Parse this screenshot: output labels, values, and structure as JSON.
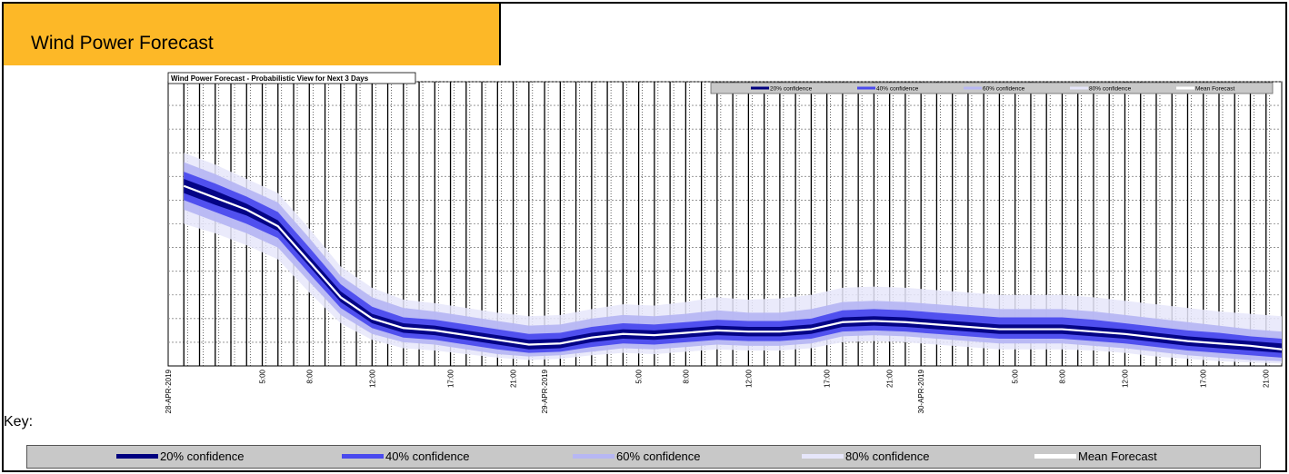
{
  "header": {
    "title": "Wind Power Forecast"
  },
  "key": {
    "label": "Key:",
    "items": [
      {
        "label": "20% confidence",
        "color": "#00007f"
      },
      {
        "label": "40% confidence",
        "color": "#4a4aee"
      },
      {
        "label": "60% confidence",
        "color": "#b7b7f3"
      },
      {
        "label": "80% confidence",
        "color": "#e6e6fa"
      },
      {
        "label": "Mean Forecast",
        "color": "#ffffff"
      }
    ]
  },
  "chart_data": {
    "type": "area",
    "title": "Wind Power Forecast - Probabilistic View for Next 3 Days",
    "xlabel": "",
    "ylabel": "",
    "ylim": [
      0,
      12000
    ],
    "yticks": [
      "0",
      "1,000",
      "2,000",
      "3,000",
      "4,000",
      "5,000",
      "6,000",
      "7,000",
      "8,000",
      "9,000",
      "10,000",
      "11,000",
      "12,000"
    ],
    "grid": true,
    "legend_position": "top-right",
    "legend": [
      "20% confidence",
      "40% confidence",
      "60% confidence",
      "80% confidence",
      "Mean Forecast"
    ],
    "x_hours": [
      0,
      2,
      4,
      6,
      8,
      10,
      12,
      14,
      16,
      18,
      20,
      22,
      24,
      26,
      28,
      30,
      32,
      34,
      36,
      38,
      40,
      42,
      44,
      46,
      48,
      50,
      52,
      54,
      56,
      58,
      60,
      62,
      64,
      66,
      68,
      70
    ],
    "x_tick_labels": [
      {
        "hour": 0,
        "label": "28-APR-2019"
      },
      {
        "hour": 5,
        "label": "5:00"
      },
      {
        "hour": 8,
        "label": "8:00"
      },
      {
        "hour": 12,
        "label": "12:00"
      },
      {
        "hour": 17,
        "label": "17:00"
      },
      {
        "hour": 21,
        "label": "21:00"
      },
      {
        "hour": 24,
        "label": "29-APR-2019"
      },
      {
        "hour": 29,
        "label": "5:00"
      },
      {
        "hour": 32,
        "label": "8:00"
      },
      {
        "hour": 36,
        "label": "12:00"
      },
      {
        "hour": 41,
        "label": "17:00"
      },
      {
        "hour": 45,
        "label": "21:00"
      },
      {
        "hour": 48,
        "label": "30-APR-2019"
      },
      {
        "hour": 53,
        "label": "5:00"
      },
      {
        "hour": 56,
        "label": "8:00"
      },
      {
        "hour": 60,
        "label": "12:00"
      },
      {
        "hour": 65,
        "label": "17:00"
      },
      {
        "hour": 69,
        "label": "21:00"
      }
    ],
    "series": [
      {
        "name": "Mean Forecast",
        "values": [
          7600,
          7100,
          6600,
          5900,
          4400,
          2900,
          2000,
          1600,
          1500,
          1300,
          1100,
          900,
          950,
          1200,
          1350,
          1300,
          1400,
          1500,
          1450,
          1450,
          1550,
          1850,
          1900,
          1850,
          1750,
          1650,
          1550,
          1550,
          1550,
          1450,
          1350,
          1200,
          1050,
          950,
          850,
          700
        ]
      },
      {
        "name": "20% confidence",
        "values": [
          [
            7300,
            7900
          ],
          [
            6800,
            7400
          ],
          [
            6350,
            6850
          ],
          [
            5700,
            6150
          ],
          [
            4200,
            4650
          ],
          [
            2700,
            3150
          ],
          [
            1800,
            2200
          ],
          [
            1400,
            1800
          ],
          [
            1300,
            1700
          ],
          [
            1100,
            1500
          ],
          [
            900,
            1300
          ],
          [
            700,
            1100
          ],
          [
            750,
            1150
          ],
          [
            1000,
            1400
          ],
          [
            1150,
            1550
          ],
          [
            1100,
            1500
          ],
          [
            1200,
            1600
          ],
          [
            1300,
            1700
          ],
          [
            1250,
            1650
          ],
          [
            1250,
            1650
          ],
          [
            1350,
            1750
          ],
          [
            1650,
            2050
          ],
          [
            1700,
            2100
          ],
          [
            1650,
            2050
          ],
          [
            1550,
            1950
          ],
          [
            1450,
            1850
          ],
          [
            1350,
            1750
          ],
          [
            1350,
            1750
          ],
          [
            1350,
            1750
          ],
          [
            1250,
            1650
          ],
          [
            1150,
            1550
          ],
          [
            1000,
            1400
          ],
          [
            850,
            1250
          ],
          [
            750,
            1150
          ],
          [
            650,
            1050
          ],
          [
            550,
            950
          ]
        ]
      },
      {
        "name": "40% confidence",
        "values": [
          [
            7000,
            8200
          ],
          [
            6500,
            7700
          ],
          [
            6000,
            7150
          ],
          [
            5400,
            6500
          ],
          [
            3900,
            5000
          ],
          [
            2450,
            3450
          ],
          [
            1600,
            2500
          ],
          [
            1200,
            2050
          ],
          [
            1100,
            1950
          ],
          [
            900,
            1750
          ],
          [
            700,
            1550
          ],
          [
            550,
            1350
          ],
          [
            600,
            1400
          ],
          [
            800,
            1650
          ],
          [
            950,
            1800
          ],
          [
            900,
            1750
          ],
          [
            1000,
            1850
          ],
          [
            1100,
            1950
          ],
          [
            1050,
            1900
          ],
          [
            1050,
            1900
          ],
          [
            1150,
            2000
          ],
          [
            1450,
            2350
          ],
          [
            1500,
            2400
          ],
          [
            1450,
            2350
          ],
          [
            1350,
            2250
          ],
          [
            1250,
            2150
          ],
          [
            1150,
            2050
          ],
          [
            1150,
            2050
          ],
          [
            1150,
            2050
          ],
          [
            1050,
            1950
          ],
          [
            950,
            1800
          ],
          [
            800,
            1650
          ],
          [
            650,
            1500
          ],
          [
            550,
            1400
          ],
          [
            450,
            1250
          ],
          [
            350,
            1150
          ]
        ]
      },
      {
        "name": "60% confidence",
        "values": [
          [
            6600,
            8600
          ],
          [
            6100,
            8100
          ],
          [
            5600,
            7500
          ],
          [
            5000,
            6900
          ],
          [
            3550,
            5400
          ],
          [
            2150,
            3800
          ],
          [
            1350,
            2900
          ],
          [
            1000,
            2450
          ],
          [
            900,
            2300
          ],
          [
            700,
            2100
          ],
          [
            500,
            1900
          ],
          [
            400,
            1700
          ],
          [
            450,
            1750
          ],
          [
            600,
            2000
          ],
          [
            750,
            2150
          ],
          [
            700,
            2100
          ],
          [
            800,
            2200
          ],
          [
            900,
            2350
          ],
          [
            850,
            2250
          ],
          [
            850,
            2250
          ],
          [
            950,
            2400
          ],
          [
            1250,
            2700
          ],
          [
            1300,
            2750
          ],
          [
            1250,
            2700
          ],
          [
            1150,
            2600
          ],
          [
            1050,
            2500
          ],
          [
            950,
            2400
          ],
          [
            950,
            2400
          ],
          [
            950,
            2400
          ],
          [
            850,
            2300
          ],
          [
            750,
            2150
          ],
          [
            600,
            2000
          ],
          [
            450,
            1850
          ],
          [
            350,
            1700
          ],
          [
            250,
            1550
          ],
          [
            200,
            1450
          ]
        ]
      },
      {
        "name": "80% confidence",
        "values": [
          [
            6000,
            9000
          ],
          [
            5600,
            8500
          ],
          [
            5100,
            7900
          ],
          [
            4500,
            7300
          ],
          [
            3100,
            5800
          ],
          [
            1800,
            4200
          ],
          [
            1100,
            3300
          ],
          [
            750,
            2800
          ],
          [
            650,
            2650
          ],
          [
            500,
            2450
          ],
          [
            350,
            2250
          ],
          [
            250,
            2100
          ],
          [
            300,
            2150
          ],
          [
            450,
            2400
          ],
          [
            550,
            2600
          ],
          [
            500,
            2550
          ],
          [
            600,
            2700
          ],
          [
            700,
            2900
          ],
          [
            650,
            2800
          ],
          [
            650,
            2850
          ],
          [
            750,
            3000
          ],
          [
            1000,
            3300
          ],
          [
            1050,
            3350
          ],
          [
            1000,
            3300
          ],
          [
            900,
            3200
          ],
          [
            800,
            3100
          ],
          [
            700,
            3000
          ],
          [
            700,
            3000
          ],
          [
            700,
            3000
          ],
          [
            650,
            2900
          ],
          [
            550,
            2750
          ],
          [
            400,
            2600
          ],
          [
            300,
            2450
          ],
          [
            200,
            2300
          ],
          [
            150,
            2200
          ],
          [
            100,
            2100
          ]
        ]
      }
    ]
  }
}
